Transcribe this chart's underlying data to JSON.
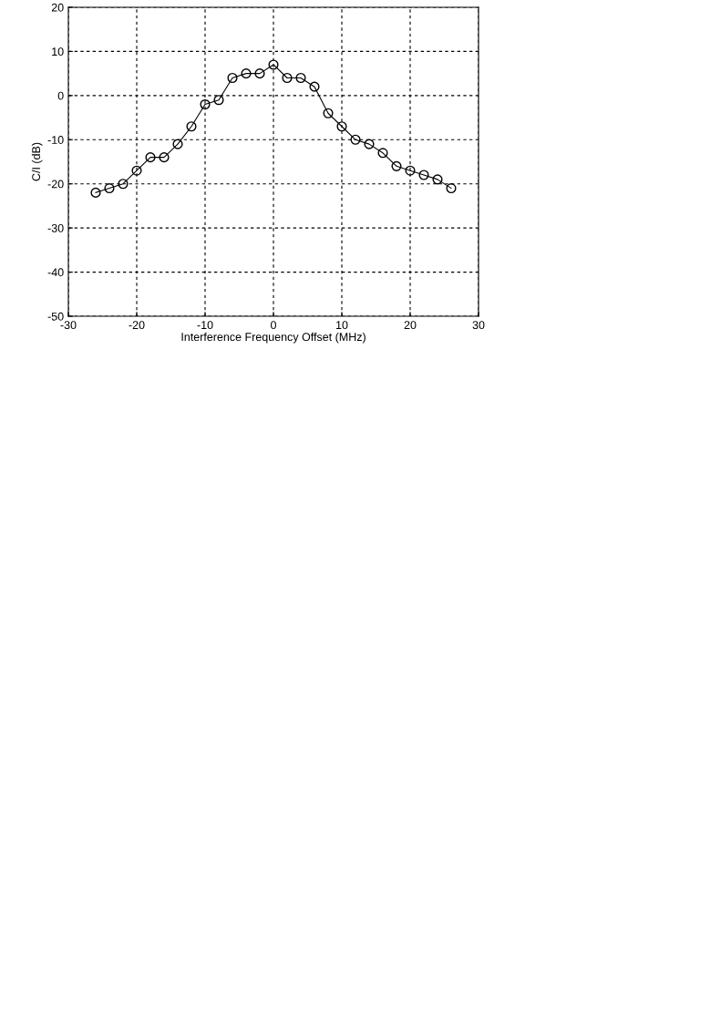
{
  "chart_data": {
    "type": "line",
    "xlabel": "Interference Frequency Offset (MHz)",
    "ylabel": "C/I (dB)",
    "x": [
      -26,
      -24,
      -22,
      -20,
      -18,
      -16,
      -14,
      -12,
      -10,
      -8,
      -6,
      -4,
      -2,
      0,
      2,
      4,
      6,
      8,
      10,
      12,
      14,
      16,
      18,
      20,
      22,
      24,
      26
    ],
    "series": [
      {
        "color": "#000000",
        "values": [
          -22,
          -21,
          -20,
          -17,
          -14,
          -14,
          -11,
          -7,
          -2,
          -1,
          4,
          5,
          5,
          7,
          4,
          4,
          2,
          -4,
          -7,
          -10,
          -11,
          -13,
          -16,
          -17,
          -18,
          -19,
          -21
        ]
      }
    ],
    "xlim": [
      -30,
      30
    ],
    "xticks": [
      -30,
      -20,
      -10,
      0,
      10,
      20,
      30
    ],
    "ylim": [
      -50,
      20
    ],
    "yticks": [
      -50,
      -40,
      -30,
      -20,
      -10,
      0,
      10,
      20
    ],
    "grid": true,
    "marker": "circle",
    "line_style": "solid"
  }
}
